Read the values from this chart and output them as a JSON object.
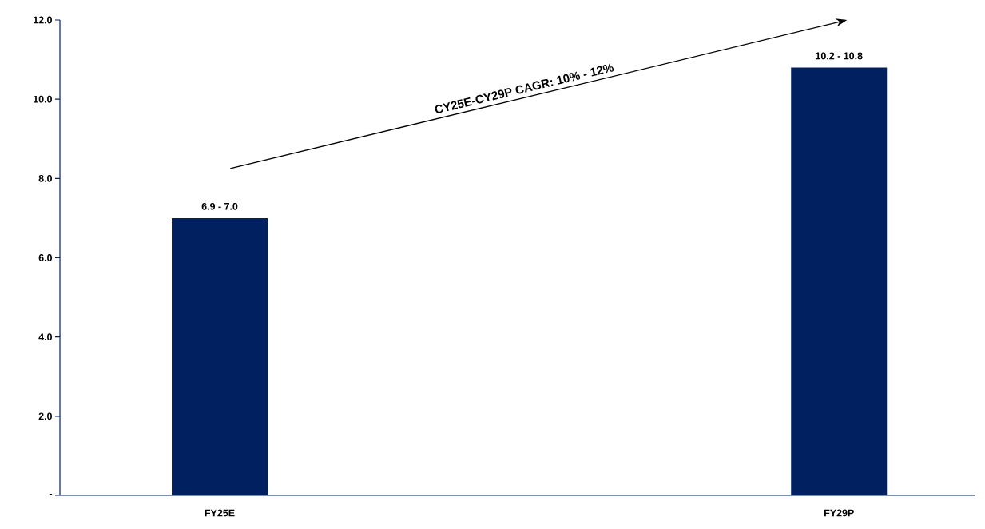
{
  "chart_data": {
    "type": "bar",
    "categories": [
      "FY25E",
      "FY29P"
    ],
    "values": [
      7.0,
      10.8
    ],
    "color": "#002060",
    "ylim": [
      0,
      12
    ],
    "yticks": [
      {
        "value": 0,
        "label": "-"
      },
      {
        "value": 2,
        "label": "2.0"
      },
      {
        "value": 4,
        "label": "4.0"
      },
      {
        "value": 6,
        "label": "6.0"
      },
      {
        "value": 8,
        "label": "8.0"
      },
      {
        "value": 10,
        "label": "10.0"
      },
      {
        "value": 12,
        "label": "12.0"
      }
    ],
    "annotations": [
      "CY25E-CY29P CAGR: 10% - 12%",
      {
        "text": "6.9 -  7.0",
        "x": "FY25E",
        "y": 7.0
      },
      {
        "text": "10.2 -  10.8",
        "x": "FY29P",
        "y": 10.8
      }
    ]
  }
}
